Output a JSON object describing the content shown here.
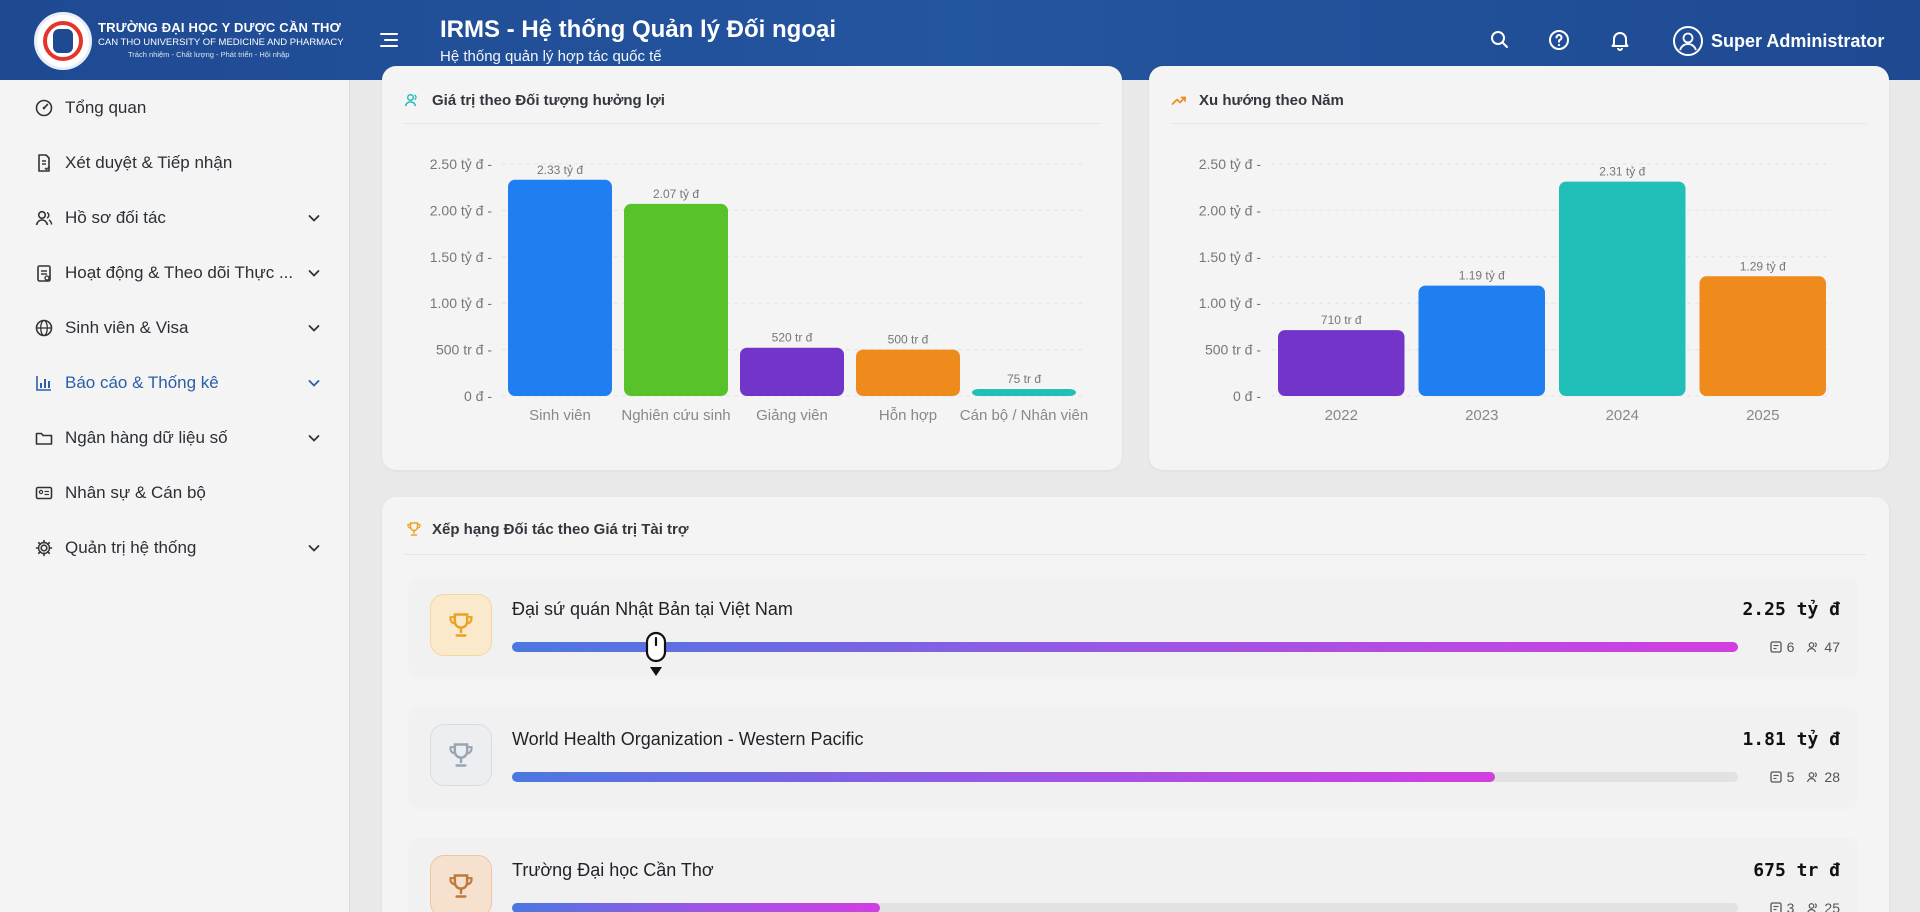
{
  "header": {
    "brand_line1": "TRƯỜNG ĐẠI HỌC Y DƯỢC CẦN THƠ",
    "brand_line2": "CAN THO UNIVERSITY OF MEDICINE AND PHARMACY",
    "brand_line3": "Trách nhiệm - Chất lượng - Phát triển - Hội nhập",
    "title": "IRMS - Hệ thống Quản lý Đối ngoại",
    "subtitle": "Hệ thống quản lý hợp tác quốc tế",
    "user_name": "Super Administrator"
  },
  "sidebar": {
    "items": [
      {
        "label": "Tổng quan",
        "icon": "dashboard-icon",
        "expandable": false
      },
      {
        "label": "Xét duyệt & Tiếp nhận",
        "icon": "document-check-icon",
        "expandable": false
      },
      {
        "label": "Hồ sơ đối tác",
        "icon": "users-icon",
        "expandable": true
      },
      {
        "label": "Hoạt động & Theo dõi Thực ...",
        "icon": "clipboard-icon",
        "expandable": true
      },
      {
        "label": "Sinh viên & Visa",
        "icon": "globe-icon",
        "expandable": true
      },
      {
        "label": "Báo cáo & Thống kê",
        "icon": "bar-chart-icon",
        "expandable": true
      },
      {
        "label": "Ngân hàng dữ liệu số",
        "icon": "folder-icon",
        "expandable": true
      },
      {
        "label": "Nhân sự & Cán bộ",
        "icon": "id-card-icon",
        "expandable": false
      },
      {
        "label": "Quản trị hệ thống",
        "icon": "gear-icon",
        "expandable": true
      }
    ]
  },
  "chart_data": [
    {
      "type": "bar",
      "title": "Giá trị theo Đối tượng hưởng lợi",
      "categories": [
        "Sinh viên",
        "Nghiên cứu sinh",
        "Giảng viên",
        "Hỗn hợp",
        "Cán bộ / Nhân viên"
      ],
      "values": [
        2330,
        2070,
        520,
        500,
        75
      ],
      "data_labels": [
        "2.33 tỷ đ",
        "2.07 tỷ đ",
        "520 tr đ",
        "500 tr đ",
        "75 tr đ"
      ],
      "colors": [
        "#1f7ef0",
        "#57c22a",
        "#7234c9",
        "#ef8a1d",
        "#22bfb9"
      ],
      "yticks": [
        0,
        500,
        1000,
        1500,
        2000,
        2500
      ],
      "ytick_labels": [
        "0 đ",
        "500 tr đ",
        "1.00 tỷ đ",
        "1.50 tỷ đ",
        "2.00 tỷ đ",
        "2.50 tỷ đ"
      ],
      "ylim": [
        0,
        2500
      ],
      "grid": true
    },
    {
      "type": "bar",
      "title": "Xu hướng theo Năm",
      "categories": [
        "2022",
        "2023",
        "2024",
        "2025"
      ],
      "values": [
        710,
        1190,
        2310,
        1290
      ],
      "data_labels": [
        "710 tr đ",
        "1.19 tỷ đ",
        "2.31 tỷ đ",
        "1.29 tỷ đ"
      ],
      "colors": [
        "#7234c9",
        "#1f7ef0",
        "#22bfb9",
        "#ef8a1d"
      ],
      "yticks": [
        0,
        500,
        1000,
        1500,
        2000,
        2500
      ],
      "ytick_labels": [
        "0 đ",
        "500 tr đ",
        "1.00 tỷ đ",
        "1.50 tỷ đ",
        "2.00 tỷ đ",
        "2.50 tỷ đ"
      ],
      "ylim": [
        0,
        2500
      ],
      "grid": true
    }
  ],
  "ranking": {
    "title": "Xếp hạng Đối tác theo Giá trị Tài trợ",
    "items": [
      {
        "name": "Đại sứ quán Nhật Bản tại Việt Nam",
        "value": "2.25 tỷ đ",
        "fraction": 1.0,
        "docs": "6",
        "people": "47",
        "medal": "gold",
        "medal_color": "#e9a322"
      },
      {
        "name": "World Health Organization - Western Pacific",
        "value": "1.81 tỷ đ",
        "fraction": 0.802,
        "docs": "5",
        "people": "28",
        "medal": "silver",
        "medal_color": "#9aa4b1"
      },
      {
        "name": "Trường Đại học Cần Thơ",
        "value": "675 tr đ",
        "fraction": 0.3,
        "docs": "3",
        "people": "25",
        "medal": "bronze",
        "medal_color": "#c0793c"
      }
    ]
  }
}
